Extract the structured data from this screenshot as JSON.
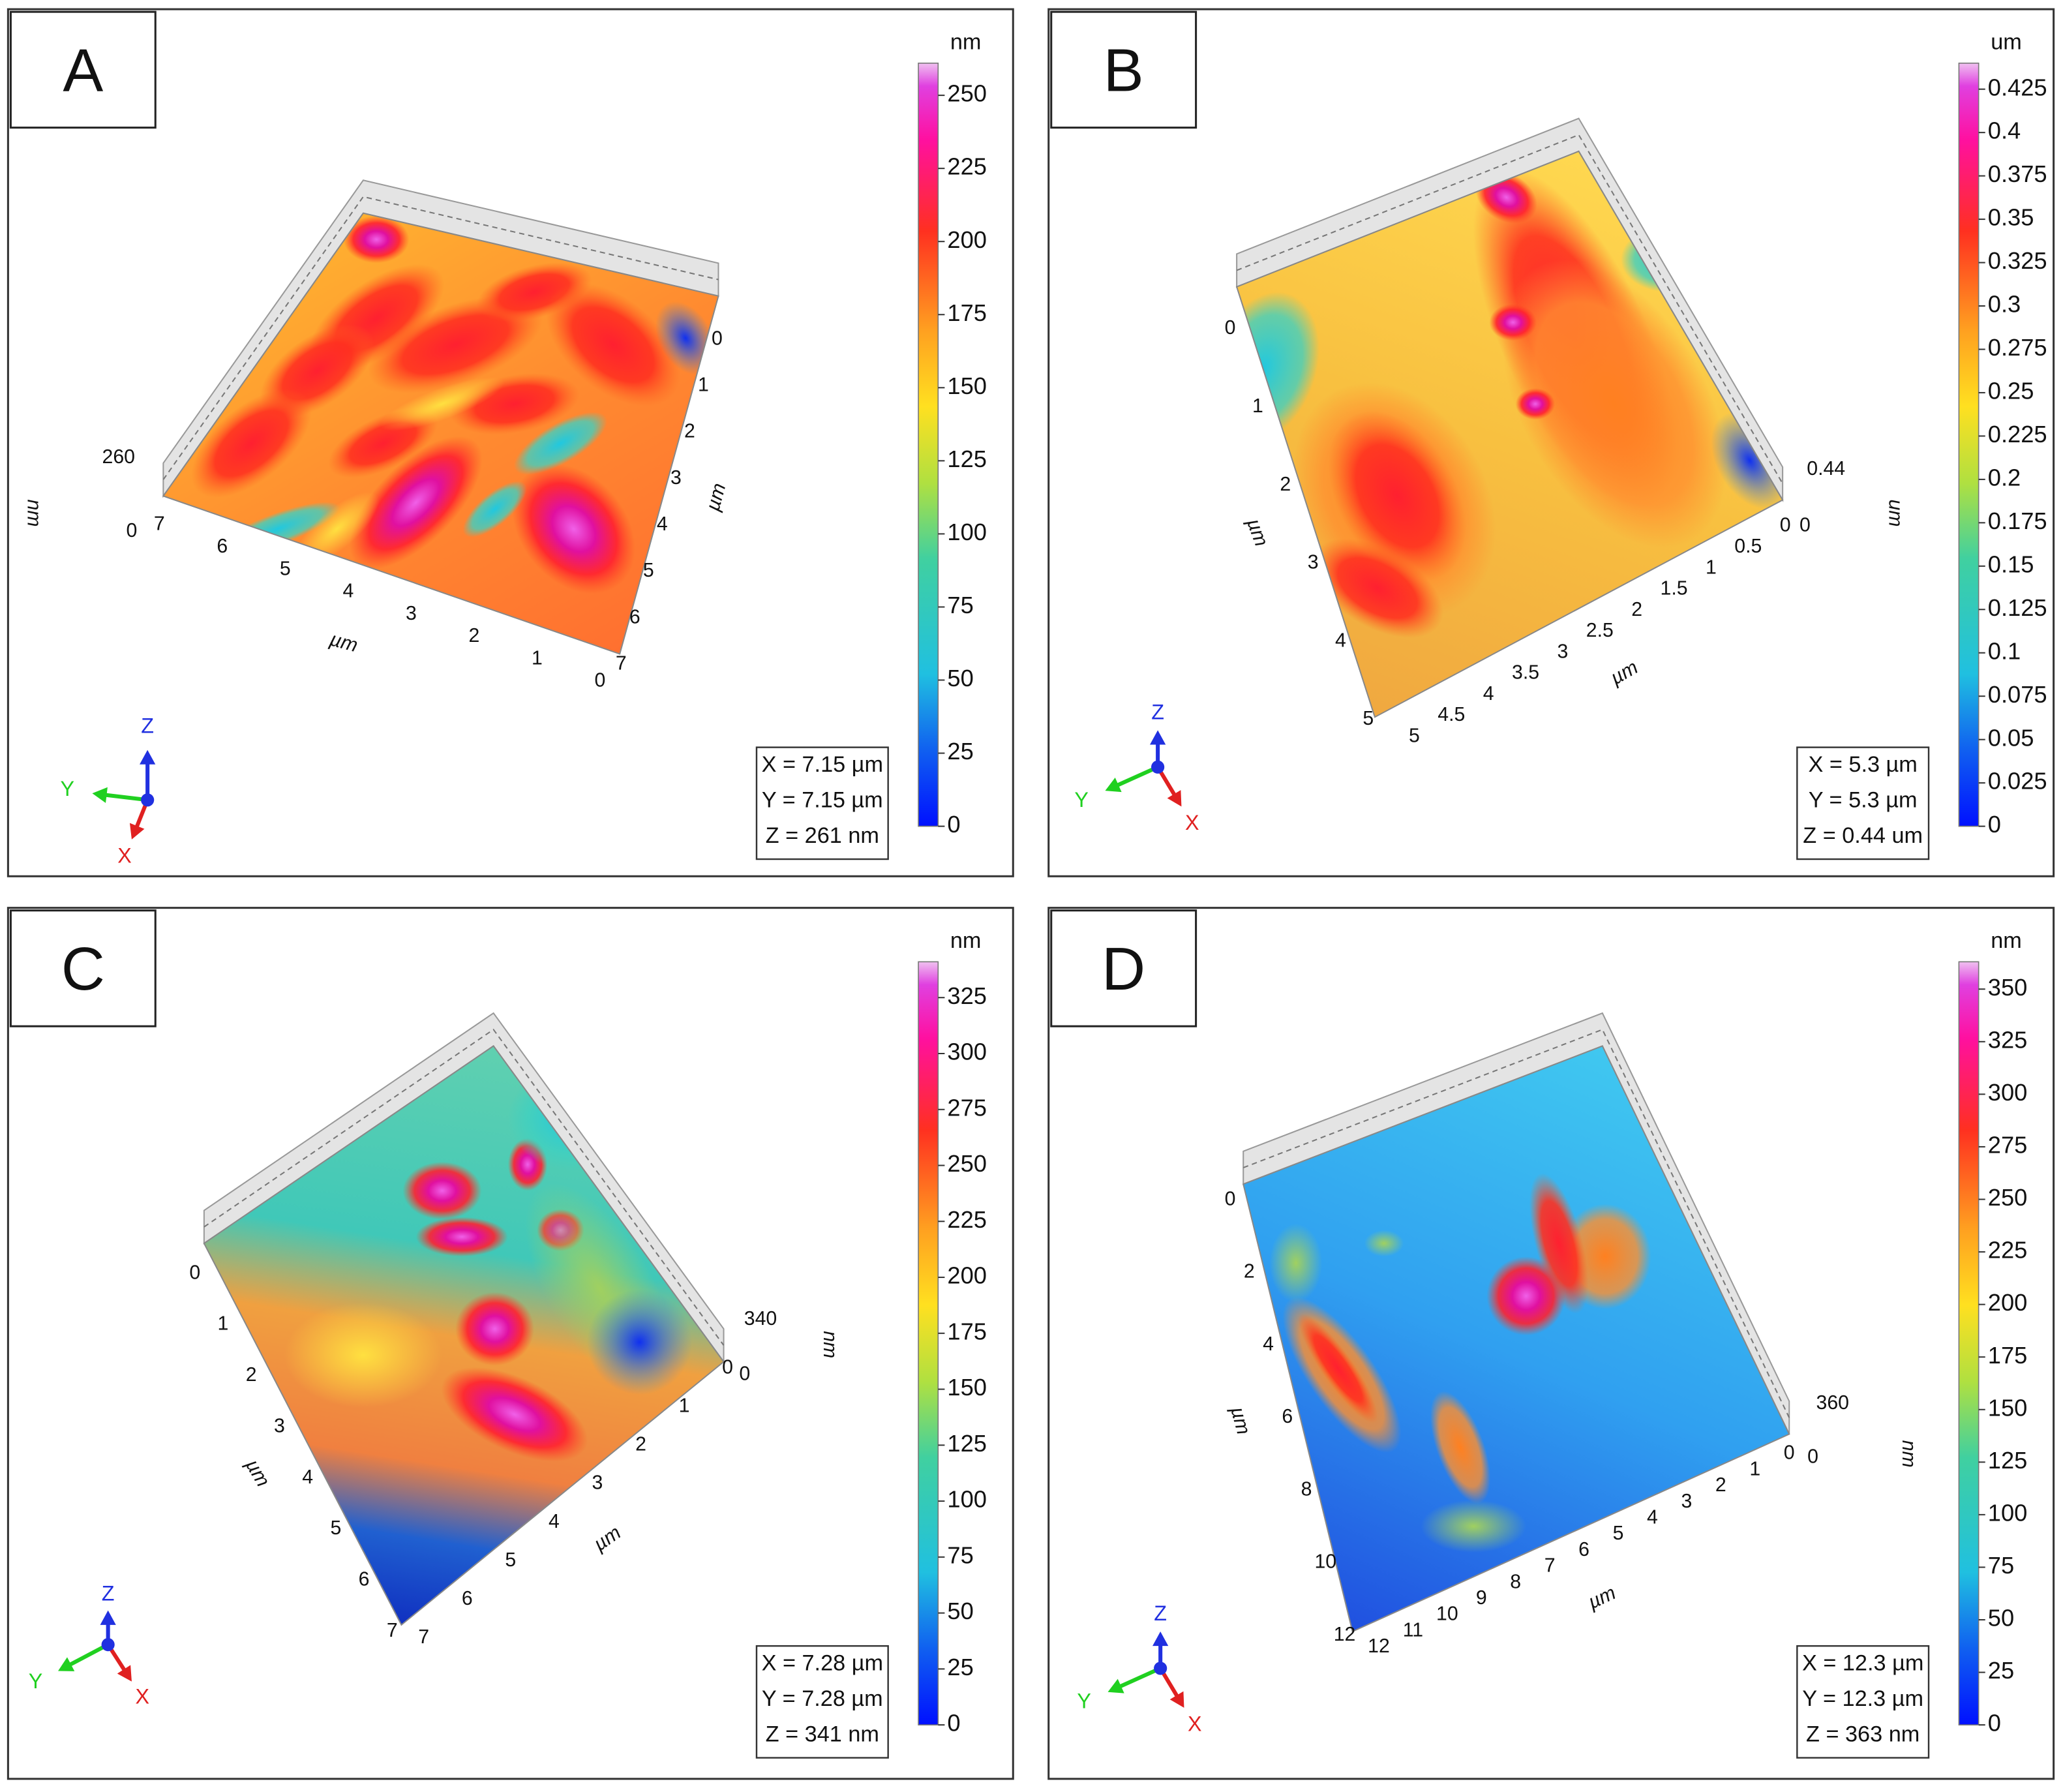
{
  "panels": [
    {
      "label": "A",
      "axis1": {
        "title": "µm",
        "ticks": [
          7,
          6,
          5,
          4,
          3,
          2,
          1,
          0
        ]
      },
      "axis2": {
        "title": "µm",
        "ticks": [
          0,
          1,
          2,
          3,
          4,
          5,
          6,
          7
        ]
      },
      "z_axis": {
        "title": "nm",
        "ticks": [
          260,
          0
        ]
      },
      "colorbar": {
        "unit": "nm",
        "range": [
          0,
          261
        ],
        "ticks": [
          0,
          25,
          50,
          75,
          100,
          125,
          150,
          175,
          200,
          225,
          250
        ]
      },
      "info": [
        "X = 7.15 µm",
        "Y = 7.15 µm",
        "Z = 261 nm"
      ],
      "axes_indicator": {
        "x": "X",
        "y": "Y",
        "z": "Z"
      }
    },
    {
      "label": "B",
      "axis1": {
        "title": "µm",
        "ticks": [
          0,
          1,
          2,
          3,
          4,
          5
        ]
      },
      "axis2": {
        "title": "µm",
        "ticks": [
          5,
          4.5,
          4,
          3.5,
          3,
          2.5,
          2,
          1.5,
          1,
          0.5,
          0
        ]
      },
      "z_axis": {
        "title": "um",
        "ticks": [
          0.44,
          0
        ]
      },
      "colorbar": {
        "unit": "um",
        "range": [
          0,
          0.44
        ],
        "ticks": [
          0,
          0.025,
          0.05,
          0.075,
          0.1,
          0.125,
          0.15,
          0.175,
          0.2,
          0.225,
          0.25,
          0.275,
          0.3,
          0.325,
          0.35,
          0.375,
          0.4,
          0.425
        ]
      },
      "info": [
        "X = 5.3 µm",
        "Y = 5.3 µm",
        "Z = 0.44 um"
      ],
      "axes_indicator": {
        "x": "X",
        "y": "Y",
        "z": "Z"
      }
    },
    {
      "label": "C",
      "axis1": {
        "title": "µm",
        "ticks": [
          0,
          1,
          2,
          3,
          4,
          5,
          6,
          7
        ]
      },
      "axis2": {
        "title": "µm",
        "ticks": [
          7,
          6,
          5,
          4,
          3,
          2,
          1,
          0
        ]
      },
      "z_axis": {
        "title": "nm",
        "ticks": [
          340,
          0
        ]
      },
      "colorbar": {
        "unit": "nm",
        "range": [
          0,
          341
        ],
        "ticks": [
          0,
          25,
          50,
          75,
          100,
          125,
          150,
          175,
          200,
          225,
          250,
          275,
          300,
          325
        ]
      },
      "info": [
        "X = 7.28 µm",
        "Y = 7.28 µm",
        "Z = 341 nm"
      ],
      "axes_indicator": {
        "x": "X",
        "y": "Y",
        "z": "Z"
      }
    },
    {
      "label": "D",
      "axis1": {
        "title": "µm",
        "ticks": [
          0,
          2,
          4,
          6,
          8,
          10,
          12
        ]
      },
      "axis2": {
        "title": "µm",
        "ticks": [
          12,
          11,
          10,
          9,
          8,
          7,
          6,
          5,
          4,
          3,
          2,
          1,
          0
        ]
      },
      "z_axis": {
        "title": "nm",
        "ticks": [
          360,
          0
        ]
      },
      "colorbar": {
        "unit": "nm",
        "range": [
          0,
          363
        ],
        "ticks": [
          0,
          25,
          50,
          75,
          100,
          125,
          150,
          175,
          200,
          225,
          250,
          275,
          300,
          325,
          350
        ]
      },
      "info": [
        "X = 12.3 µm",
        "Y = 12.3 µm",
        "Z = 363 nm"
      ],
      "axes_indicator": {
        "x": "X",
        "y": "Y",
        "z": "Z"
      }
    }
  ]
}
